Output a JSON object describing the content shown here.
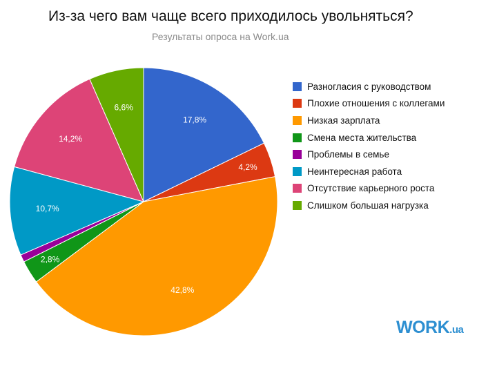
{
  "chart_data": {
    "type": "pie",
    "title": "Из-за чего вам чаще всего приходилось увольняться?",
    "subtitle": "Результаты опроса на Work.ua",
    "legend_position": "right",
    "slices": [
      {
        "name": "Разногласия с руководством",
        "value": 17.8,
        "label": "17,8%",
        "color": "#3366cc"
      },
      {
        "name": "Плохие отношения с коллегами",
        "value": 4.2,
        "label": "4,2%",
        "color": "#dc3912"
      },
      {
        "name": "Низкая зарплата",
        "value": 42.8,
        "label": "42,8%",
        "color": "#ff9900"
      },
      {
        "name": "Смена места жительства",
        "value": 2.8,
        "label": "2,8%",
        "color": "#109618"
      },
      {
        "name": "Проблемы в семье",
        "value": 0.9,
        "label": "",
        "color": "#990099"
      },
      {
        "name": "Неинтересная работа",
        "value": 10.7,
        "label": "10,7%",
        "color": "#0099c6"
      },
      {
        "name": "Отсутствие карьерного роста",
        "value": 14.2,
        "label": "14,2%",
        "color": "#dd4477"
      },
      {
        "name": "Слишком большая нагрузка",
        "value": 6.6,
        "label": "6,6%",
        "color": "#66aa00"
      }
    ]
  },
  "logo": {
    "main": "WORK",
    "suffix": ".ua"
  }
}
